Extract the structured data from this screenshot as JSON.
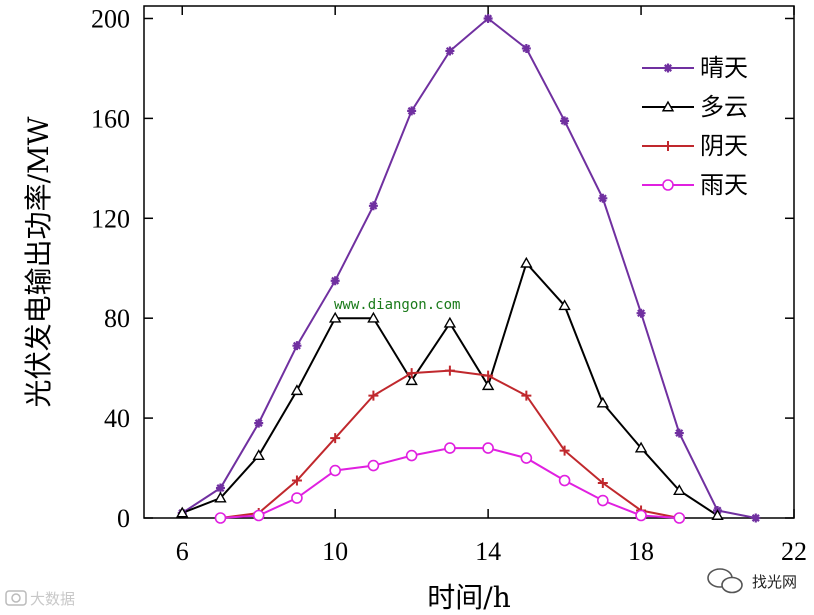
{
  "chart_data": {
    "type": "line",
    "title": "",
    "xlabel": "时间/h",
    "ylabel": "光伏发电输出功率/MW",
    "xlim": [
      5,
      22
    ],
    "ylim": [
      0,
      205
    ],
    "xticks": [
      6,
      10,
      14,
      18,
      22
    ],
    "yticks": [
      0,
      40,
      80,
      120,
      160,
      200
    ],
    "grid": false,
    "legend_position": "top-right",
    "series": [
      {
        "name": "晴天",
        "color": "#7030a0",
        "marker": "star",
        "x": [
          6,
          7,
          8,
          9,
          10,
          11,
          12,
          13,
          14,
          15,
          16,
          17,
          18,
          19,
          20,
          21
        ],
        "y": [
          2,
          12,
          38,
          69,
          95,
          125,
          163,
          187,
          200,
          188,
          159,
          128,
          82,
          34,
          3,
          0
        ]
      },
      {
        "name": "多云",
        "color": "#000000",
        "marker": "triangle",
        "x": [
          6,
          7,
          8,
          9,
          10,
          11,
          12,
          13,
          14,
          15,
          16,
          17,
          18,
          19,
          20
        ],
        "y": [
          2,
          8,
          25,
          51,
          80,
          80,
          55,
          78,
          53,
          102,
          85,
          46,
          28,
          11,
          1
        ]
      },
      {
        "name": "阴天",
        "color": "#c0282d",
        "marker": "plus",
        "x": [
          7,
          8,
          9,
          10,
          11,
          12,
          13,
          14,
          15,
          16,
          17,
          18,
          19
        ],
        "y": [
          0,
          2,
          15,
          32,
          49,
          58,
          59,
          57,
          49,
          27,
          14,
          3,
          0
        ]
      },
      {
        "name": "雨天",
        "color": "#e020e0",
        "marker": "circle",
        "x": [
          7,
          8,
          9,
          10,
          11,
          12,
          13,
          14,
          15,
          16,
          17,
          18,
          19
        ],
        "y": [
          0,
          1,
          8,
          19,
          21,
          25,
          28,
          28,
          24,
          15,
          7,
          1,
          0
        ]
      }
    ],
    "annotations": [
      "www.diangon.com"
    ]
  },
  "watermarks": {
    "left": "大数据",
    "right": "找光网"
  },
  "icons": {
    "left": "camera-icon",
    "right": "wechat-icon"
  }
}
